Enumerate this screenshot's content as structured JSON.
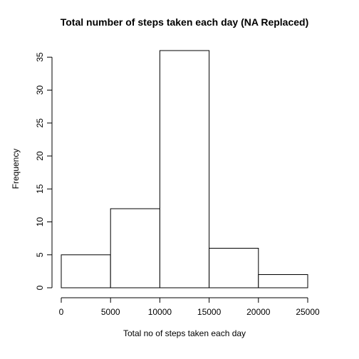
{
  "chart_data": {
    "type": "bar",
    "title": "Total number of steps taken each day (NA Replaced)",
    "xlabel": "Total no of steps taken each day",
    "ylabel": "Frequency",
    "bins": [
      {
        "from": 0,
        "to": 5000,
        "count": 5
      },
      {
        "from": 5000,
        "to": 10000,
        "count": 12
      },
      {
        "from": 10000,
        "to": 15000,
        "count": 36
      },
      {
        "from": 15000,
        "to": 20000,
        "count": 6
      },
      {
        "from": 20000,
        "to": 25000,
        "count": 2
      }
    ],
    "xticks": [
      "0",
      "5000",
      "10000",
      "15000",
      "20000",
      "25000"
    ],
    "yticks": [
      "0",
      "5",
      "10",
      "15",
      "20",
      "25",
      "30",
      "35"
    ],
    "xlim": [
      0,
      25000
    ],
    "ylim": [
      0,
      36
    ],
    "grid": false,
    "colors": {
      "bar_fill": "#ffffff",
      "bar_stroke": "#000000"
    }
  }
}
